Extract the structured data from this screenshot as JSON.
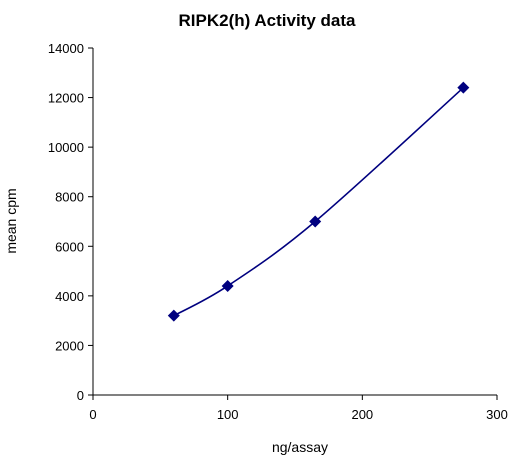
{
  "chart_data": {
    "type": "scatter",
    "title": "RIPK2(h) Activity data",
    "xlabel": "ng/assay",
    "ylabel": "mean cpm",
    "xlim": [
      0,
      300
    ],
    "ylim": [
      0,
      14000
    ],
    "xticks": [
      "0",
      "100",
      "200",
      "300"
    ],
    "yticks": [
      "0",
      "2000",
      "4000",
      "6000",
      "8000",
      "10000",
      "12000",
      "14000"
    ],
    "grid": false,
    "legend": "none",
    "series": [
      {
        "x": [
          60,
          100,
          165,
          275
        ],
        "y": [
          3200,
          4400,
          7000,
          12400
        ],
        "marker": "diamond",
        "line": "smooth",
        "color": "#00007f"
      }
    ]
  }
}
